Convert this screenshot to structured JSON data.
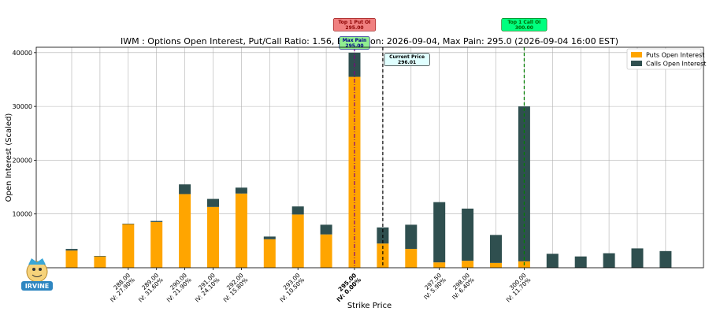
{
  "chart_data": {
    "type": "bar",
    "title": "IWM : Options Open Interest, Put/Call Ratio: 1.56, Expiration: 2026-09-04, Max Pain: 295.0 (2026-09-04 16:00 EST)",
    "xlabel": "Strike Price",
    "ylabel": "Open Interest (Scaled)",
    "ylim": [
      0,
      41000
    ],
    "yticks": [
      0,
      10000,
      20000,
      30000,
      40000
    ],
    "grid": true,
    "legend_position": "top-right",
    "stacked": true,
    "series": [
      {
        "name": "Puts Open Interest",
        "color": "#ffa500",
        "values": [
          3200,
          2100,
          8100,
          8500,
          13700,
          11300,
          13800,
          5300,
          9900,
          6200,
          35500,
          4500,
          3500,
          1000,
          1300,
          900,
          1200,
          0,
          0,
          0,
          0,
          0
        ]
      },
      {
        "name": "Calls Open Interest",
        "color": "#2f4f4f",
        "values": [
          300,
          100,
          100,
          200,
          1800,
          1500,
          1100,
          500,
          1500,
          1800,
          4500,
          3000,
          4500,
          11200,
          9700,
          5200,
          28800,
          2600,
          2100,
          2700,
          3600,
          3100
        ]
      }
    ],
    "strike_labels": [
      {
        "index": 2,
        "strike": "288.00",
        "iv": "IV: 27.90%"
      },
      {
        "index": 3,
        "strike": "289.00",
        "iv": "IV: 31.60%"
      },
      {
        "index": 4,
        "strike": "290.00",
        "iv": "IV: 21.90%"
      },
      {
        "index": 5,
        "strike": "291.00",
        "iv": "IV: 24.10%"
      },
      {
        "index": 6,
        "strike": "292.00",
        "iv": "IV: 15.80%"
      },
      {
        "index": 8,
        "strike": "293.00",
        "iv": "IV: 10.50%"
      },
      {
        "index": 10,
        "strike": "295.00",
        "iv": "IV: 0.00%",
        "bold": true
      },
      {
        "index": 13,
        "strike": "297.50",
        "iv": "IV: 5.90%"
      },
      {
        "index": 14,
        "strike": "298.00",
        "iv": "IV: 6.40%"
      },
      {
        "index": 16,
        "strike": "300.00",
        "iv": "IV: 11.70%"
      }
    ],
    "annotations": [
      {
        "label": "Top 1 Put OI",
        "value": "295.00",
        "at_index": 10,
        "y": 45200,
        "line_color": "#800080",
        "line_style": "dashdot",
        "box_color": "#f08080",
        "text_color": "#8b0000"
      },
      {
        "label": "Max Pain",
        "value": "295.00",
        "at_index": 10,
        "y": 41800,
        "box_color": "#90ee90",
        "text_color": "#00008b"
      },
      {
        "label": "Current Price",
        "value": "296.01",
        "at_index": 11.0,
        "y": 38700,
        "line_color": "#000000",
        "line_style": "dashed",
        "box_color": "#e0ffff",
        "text_color": "#000000"
      },
      {
        "label": "Top 1 Call OI",
        "value": "300.00",
        "at_index": 16,
        "y": 45200,
        "line_color": "#008000",
        "line_style": "dashed",
        "box_color": "#00ff7f",
        "text_color": "#006400"
      }
    ]
  },
  "logo": {
    "text": "IRVINE"
  }
}
